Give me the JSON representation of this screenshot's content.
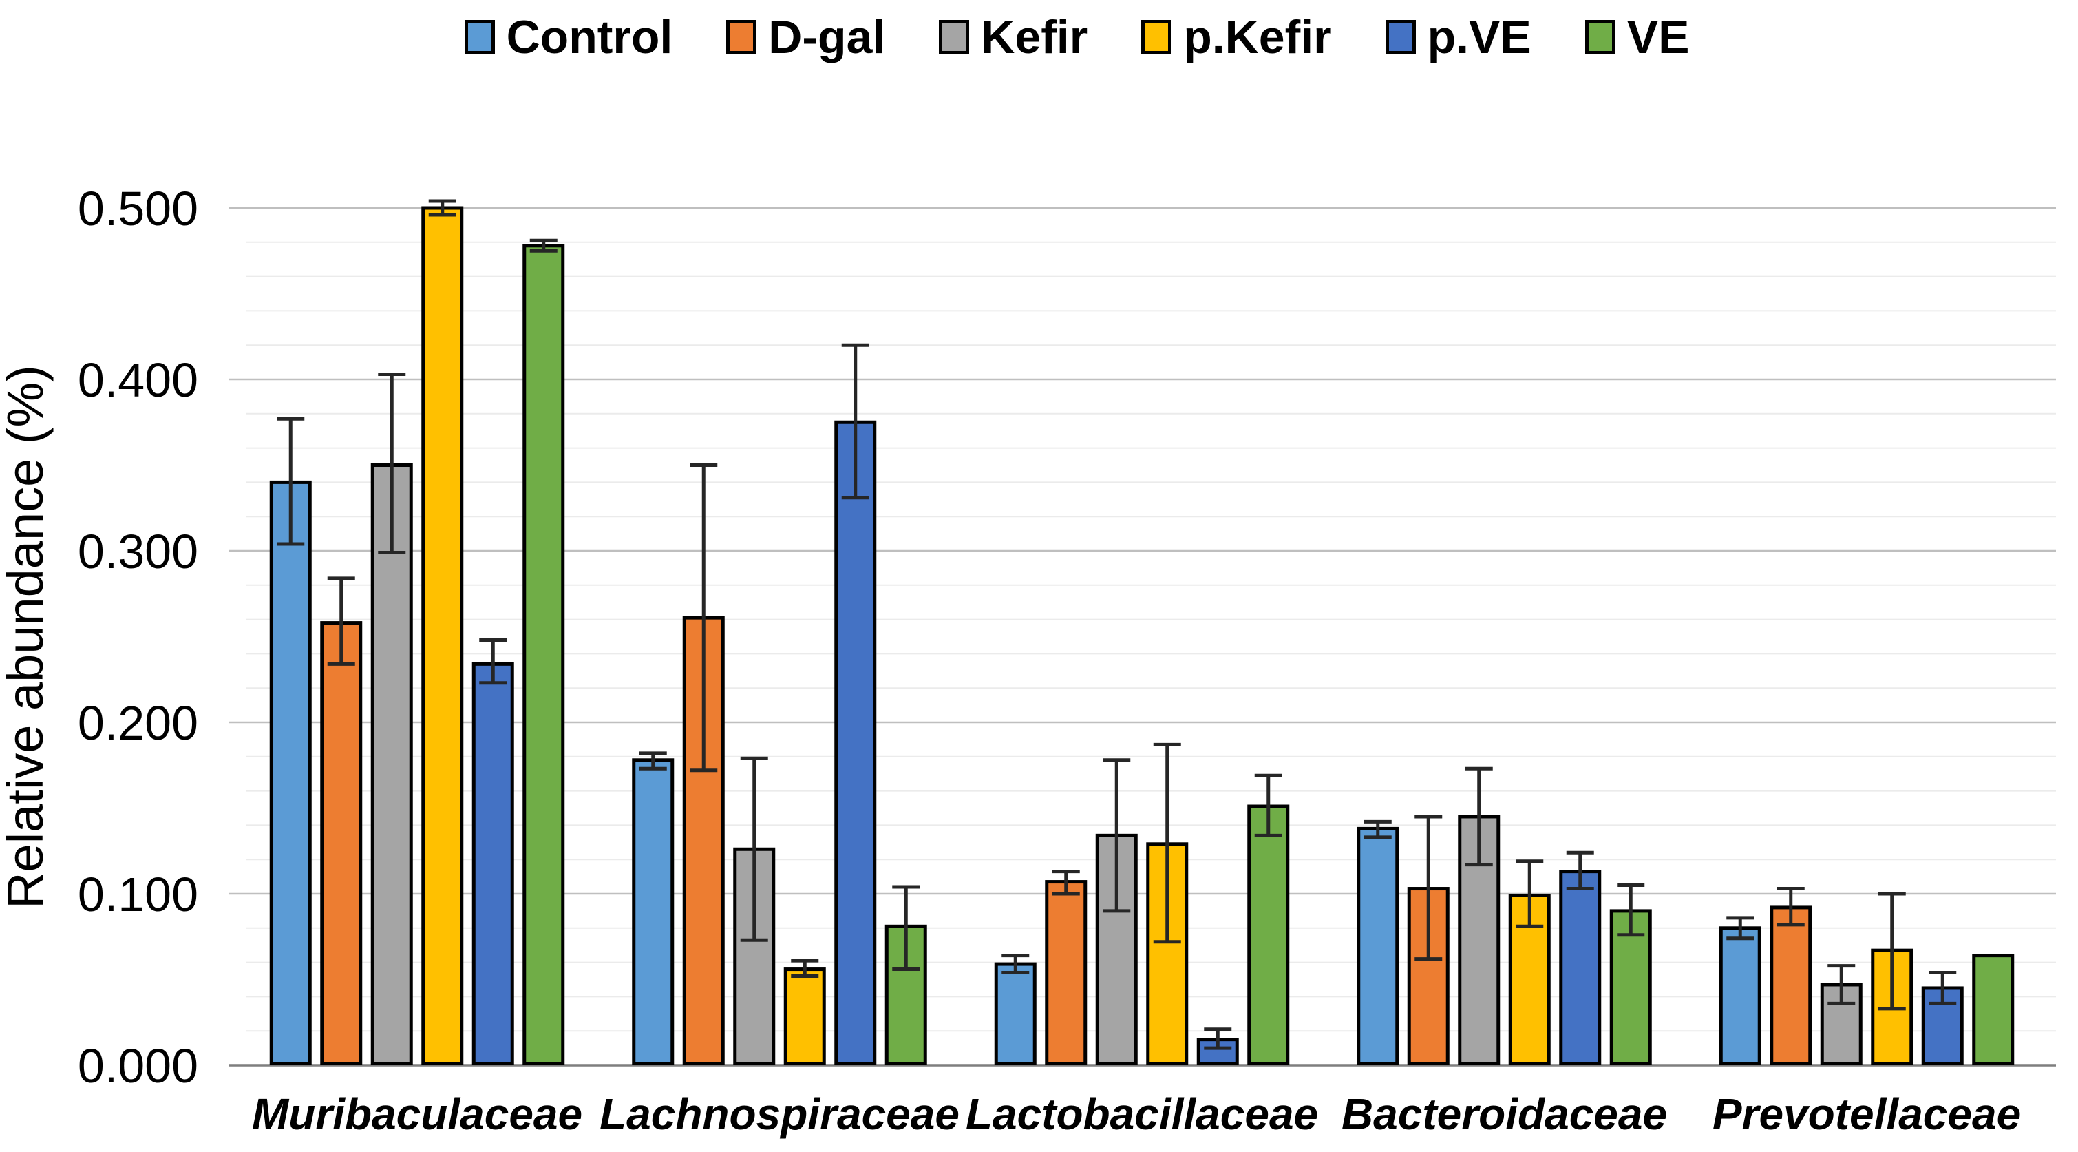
{
  "figure": {
    "background": "#ffffff"
  },
  "chart_data": {
    "type": "bar",
    "title": "",
    "xlabel": "",
    "ylabel": "Relative abundance (%)",
    "ylim": [
      0,
      0.5
    ],
    "yticks_values": [
      0,
      0.1,
      0.2,
      0.3,
      0.4,
      0.5
    ],
    "yticks_labels": [
      "0.000",
      "0.100",
      "0.200",
      "0.300",
      "0.400",
      "0.500"
    ],
    "minor_grid_step": 0.02,
    "grid": true,
    "legend_position": "top",
    "error_bars": true,
    "categories": [
      "Muribaculaceae",
      "Lachnospiraceae",
      "Lactobacillaceae",
      "Bacteroidaceae",
      "Prevotellaceae"
    ],
    "series": [
      {
        "name": "Control",
        "color": "#5B9BD5",
        "values": [
          0.34,
          0.178,
          0.059,
          0.138,
          0.08
        ],
        "err_up": [
          0.037,
          0.004,
          0.005,
          0.004,
          0.006
        ],
        "err_down": [
          0.036,
          0.005,
          0.005,
          0.005,
          0.006
        ]
      },
      {
        "name": "D-gal",
        "color": "#ED7D31",
        "values": [
          0.258,
          0.261,
          0.107,
          0.103,
          0.092
        ],
        "err_up": [
          0.026,
          0.089,
          0.006,
          0.042,
          0.011
        ],
        "err_down": [
          0.024,
          0.089,
          0.007,
          0.041,
          0.01
        ]
      },
      {
        "name": "Kefir",
        "color": "#A5A5A5",
        "values": [
          0.35,
          0.126,
          0.134,
          0.145,
          0.047
        ],
        "err_up": [
          0.053,
          0.053,
          0.044,
          0.028,
          0.011
        ],
        "err_down": [
          0.051,
          0.053,
          0.044,
          0.028,
          0.011
        ]
      },
      {
        "name": "p.Kefir",
        "color": "#FFC000",
        "values": [
          0.5,
          0.056,
          0.129,
          0.099,
          0.067
        ],
        "err_up": [
          0.004,
          0.005,
          0.058,
          0.02,
          0.033
        ],
        "err_down": [
          0.004,
          0.004,
          0.057,
          0.018,
          0.034
        ]
      },
      {
        "name": "p.VE",
        "color": "#4472C4",
        "values": [
          0.234,
          0.375,
          0.015,
          0.113,
          0.045
        ],
        "err_up": [
          0.014,
          0.045,
          0.006,
          0.011,
          0.009
        ],
        "err_down": [
          0.011,
          0.044,
          0.005,
          0.01,
          0.009
        ]
      },
      {
        "name": "VE",
        "color": "#70AD47",
        "values": [
          0.478,
          0.081,
          0.151,
          0.09,
          0.064
        ],
        "err_up": [
          0.003,
          0.023,
          0.018,
          0.015,
          0
        ],
        "err_down": [
          0.003,
          0.025,
          0.017,
          0.014,
          0
        ]
      }
    ]
  }
}
